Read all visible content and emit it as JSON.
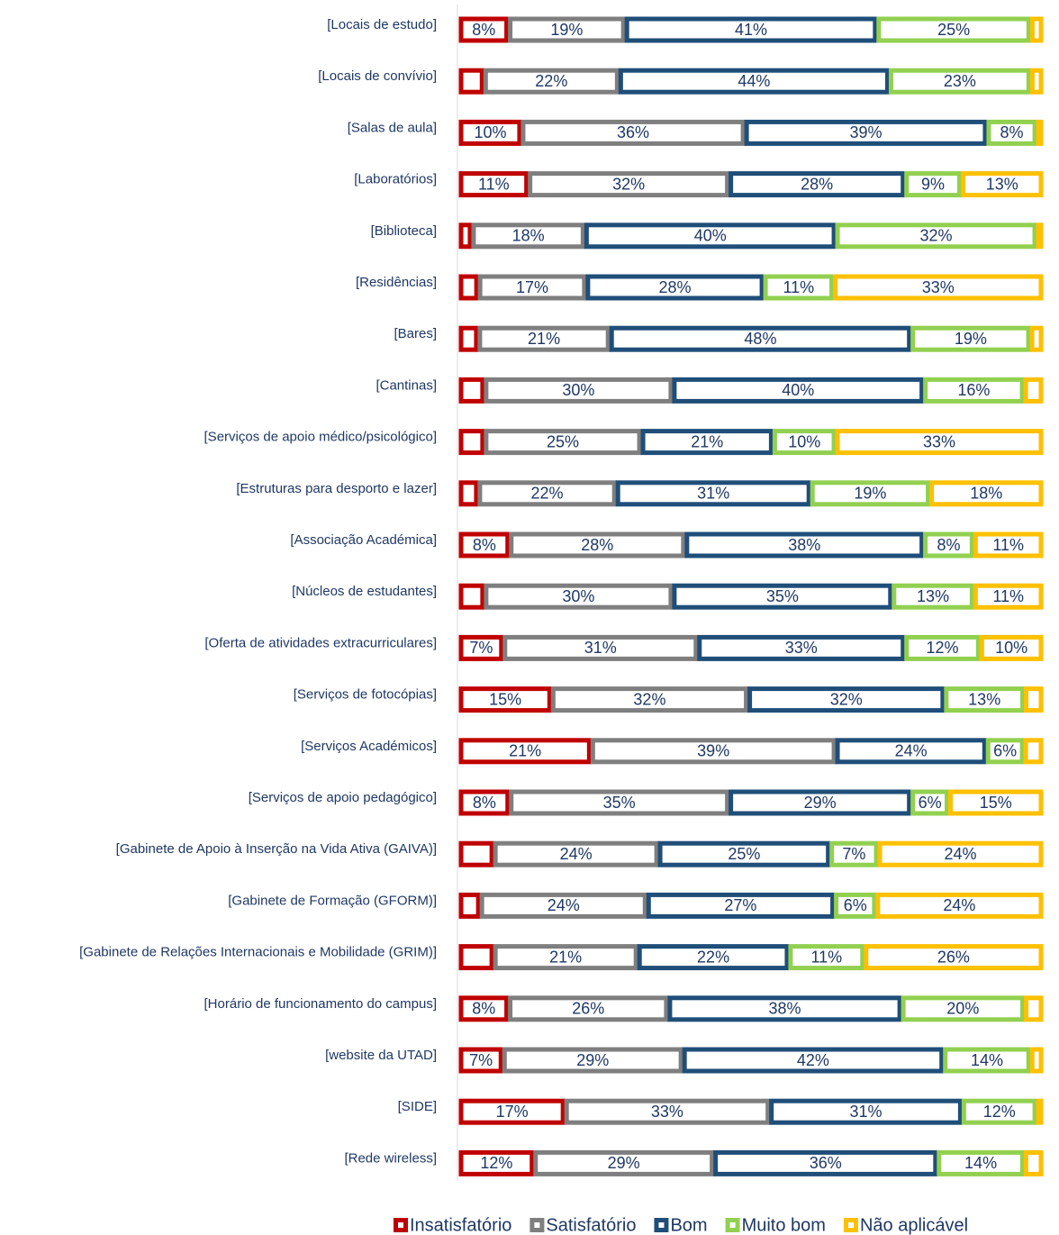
{
  "chart_data": {
    "type": "stacked-bar-100",
    "categories": [
      "[Locais de estudo]",
      "[Locais de convívio]",
      "[Salas de aula]",
      "[Laboratórios]",
      "[Biblioteca]",
      "[Residências]",
      "[Bares]",
      "[Cantinas]",
      "[Serviços de apoio médico/psicológico]",
      "[Estruturas para desporto e lazer]",
      "[Associação Académica]",
      "[Núcleos de estudantes]",
      "[Oferta de atividades extracurriculares]",
      "[Serviços de fotocópias]",
      "[Serviços Académicos]",
      "[Serviços de apoio pedagógico]",
      "[Gabinete de Apoio à Inserção na Vida Ativa (GAIVA)]",
      "[Gabinete de Formação (GFORM)]",
      "[Gabinete de Relações Internacionais e Mobilidade (GRIM)]",
      "[Horário de funcionamento do campus]",
      "[website da UTAD]",
      "[SIDE]",
      "[Rede wireless]"
    ],
    "series": [
      {
        "name": "Insatisfatório",
        "color": "#c00000",
        "values": [
          8,
          4,
          10,
          11,
          2,
          3,
          3,
          4,
          4,
          3,
          8,
          4,
          7,
          15,
          21,
          8,
          5,
          3,
          5,
          8,
          7,
          17,
          12
        ],
        "value_labels": [
          "8%",
          null,
          "10%",
          "11%",
          null,
          null,
          null,
          null,
          null,
          null,
          "8%",
          null,
          "7%",
          "15%",
          "21%",
          "8%",
          null,
          null,
          null,
          "8%",
          "7%",
          "17%",
          "12%"
        ]
      },
      {
        "name": "Satisfatório",
        "color": "#7f7f7f",
        "values": [
          19,
          22,
          36,
          32,
          18,
          17,
          21,
          30,
          25,
          22,
          28,
          30,
          31,
          32,
          39,
          35,
          24,
          24,
          21,
          26,
          29,
          33,
          29
        ],
        "value_labels": [
          "19%",
          "22%",
          "36%",
          "32%",
          "18%",
          "17%",
          "21%",
          "30%",
          "25%",
          "22%",
          "28%",
          "30%",
          "31%",
          "32%",
          "39%",
          "35%",
          "24%",
          "24%",
          "21%",
          "26%",
          "29%",
          "33%",
          "29%"
        ]
      },
      {
        "name": "Bom",
        "color": "#1f4e79",
        "values": [
          41,
          44,
          39,
          28,
          40,
          28,
          48,
          40,
          21,
          31,
          38,
          35,
          33,
          32,
          24,
          29,
          25,
          27,
          22,
          38,
          42,
          31,
          36
        ],
        "value_labels": [
          "41%",
          "44%",
          "39%",
          "28%",
          "40%",
          "28%",
          "48%",
          "40%",
          "21%",
          "31%",
          "38%",
          "35%",
          "33%",
          "32%",
          "24%",
          "29%",
          "25%",
          "27%",
          "22%",
          "38%",
          "42%",
          "31%",
          "36%"
        ]
      },
      {
        "name": "Muito bom",
        "color": "#92d050",
        "values": [
          25,
          23,
          8,
          9,
          32,
          11,
          19,
          16,
          10,
          19,
          8,
          13,
          12,
          13,
          6,
          6,
          7,
          6,
          11,
          20,
          14,
          12,
          14
        ],
        "value_labels": [
          "25%",
          "23%",
          "8%",
          "9%",
          "32%",
          "11%",
          "19%",
          "16%",
          "10%",
          "19%",
          "8%",
          "13%",
          "12%",
          "13%",
          "6%",
          "6%",
          "7%",
          "6%",
          "11%",
          "20%",
          "14%",
          "12%",
          "14%"
        ]
      },
      {
        "name": "Não aplicável",
        "color": "#ffc000",
        "values": [
          2,
          2,
          1,
          13,
          1,
          33,
          2,
          3,
          33,
          18,
          11,
          11,
          10,
          3,
          3,
          15,
          24,
          24,
          26,
          3,
          2,
          1,
          3
        ],
        "value_labels": [
          null,
          null,
          null,
          "13%",
          null,
          "33%",
          null,
          null,
          "33%",
          "18%",
          "11%",
          "11%",
          "10%",
          null,
          null,
          "15%",
          "24%",
          "24%",
          "26%",
          null,
          null,
          null,
          null
        ]
      }
    ]
  }
}
